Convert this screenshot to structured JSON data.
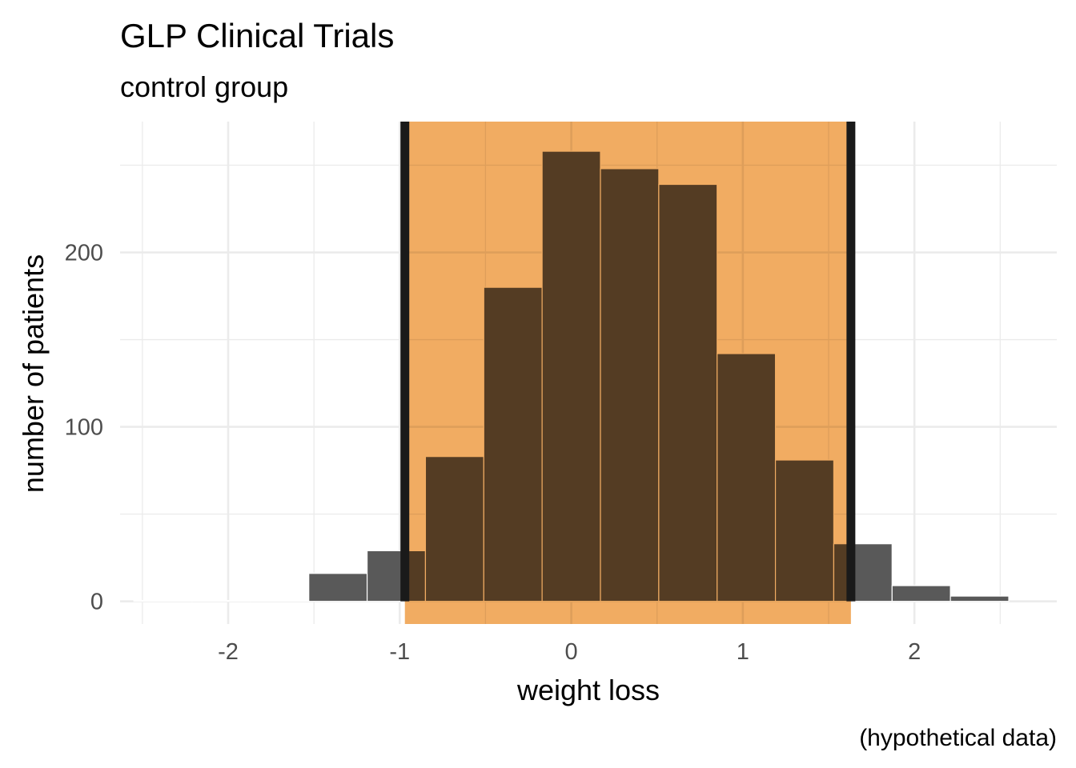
{
  "chart_data": {
    "type": "bar",
    "title": "GLP Clinical Trials",
    "subtitle": "control group",
    "xlabel": "weight loss",
    "ylabel": "number of patients",
    "caption": "(hypothetical data)",
    "xlim": [
      -2.63,
      2.83
    ],
    "ylim": [
      -13,
      275
    ],
    "x_ticks": [
      {
        "value": -2,
        "label": "-2"
      },
      {
        "value": -1,
        "label": "-1"
      },
      {
        "value": 0,
        "label": "0"
      },
      {
        "value": 1,
        "label": "1"
      },
      {
        "value": 2,
        "label": "2"
      }
    ],
    "y_ticks": [
      {
        "value": 0,
        "label": "0"
      },
      {
        "value": 100,
        "label": "100"
      },
      {
        "value": 200,
        "label": "200"
      }
    ],
    "grid": true,
    "bin_width": 0.34,
    "bins": [
      {
        "start": -2.55,
        "end": -2.21,
        "count": 0.5
      },
      {
        "start": -2.21,
        "end": -1.87,
        "count": 0.5
      },
      {
        "start": -1.87,
        "end": -1.53,
        "count": 0.5
      },
      {
        "start": -1.53,
        "end": -1.19,
        "count": 16
      },
      {
        "start": -1.19,
        "end": -0.85,
        "count": 29
      },
      {
        "start": -0.85,
        "end": -0.51,
        "count": 83
      },
      {
        "start": -0.51,
        "end": -0.17,
        "count": 180
      },
      {
        "start": -0.17,
        "end": 0.17,
        "count": 258
      },
      {
        "start": 0.17,
        "end": 0.51,
        "count": 248
      },
      {
        "start": 0.51,
        "end": 0.85,
        "count": 239
      },
      {
        "start": 0.85,
        "end": 1.19,
        "count": 142
      },
      {
        "start": 1.19,
        "end": 1.53,
        "count": 81
      },
      {
        "start": 1.53,
        "end": 1.87,
        "count": 33
      },
      {
        "start": 1.87,
        "end": 2.21,
        "count": 9
      },
      {
        "start": 2.21,
        "end": 2.55,
        "count": 3
      }
    ],
    "highlight_interval": [
      -0.97,
      1.63
    ],
    "colors": {
      "bar": "#595959",
      "highlight_fill": "#ef9e46",
      "highlight_opacity": 0.85,
      "interval_line": "#1a1a1a",
      "grid": "#ebebeb",
      "bar_outline": "#ffffff"
    }
  }
}
